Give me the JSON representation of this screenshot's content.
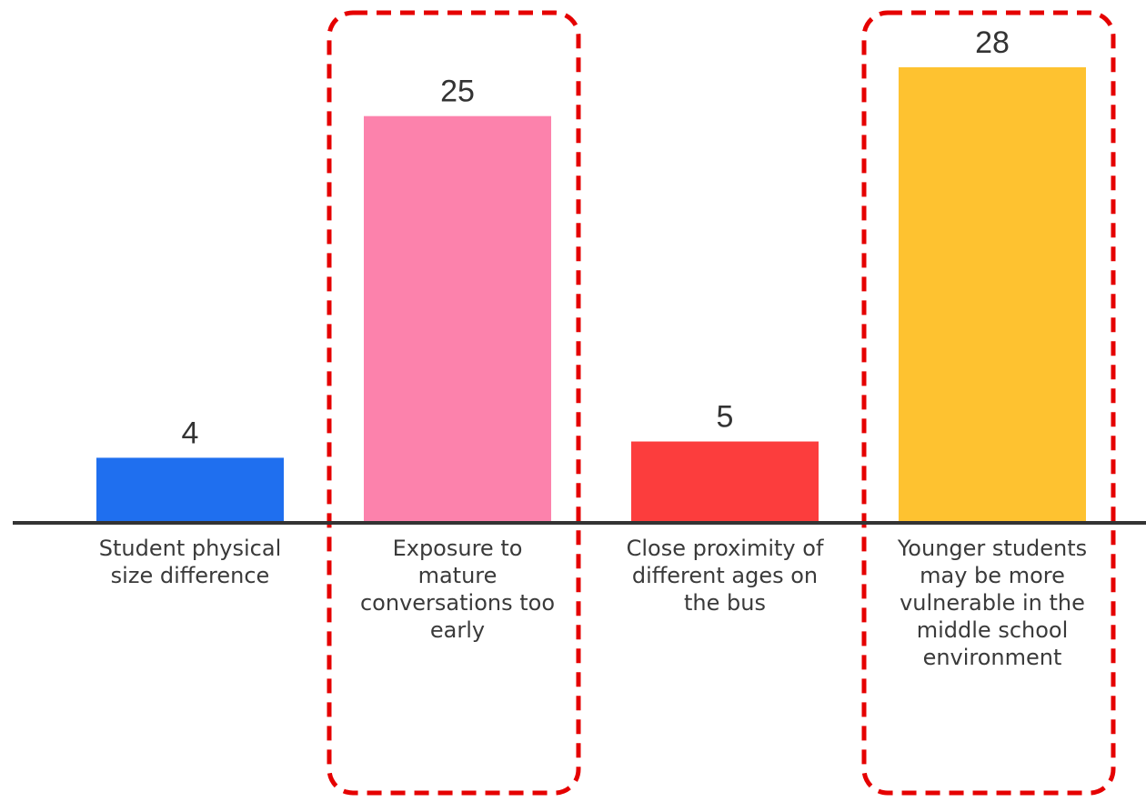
{
  "chart_data": {
    "type": "bar",
    "categories": [
      "Student physical size difference",
      "Exposure to mature conversations too early",
      "Close proximity of different ages on the bus",
      "Younger students may be more vulnerable in the middle school environment"
    ],
    "values": [
      4,
      25,
      5,
      28
    ],
    "data_labels": [
      "4",
      "25",
      "5",
      "28"
    ],
    "colors": [
      "#1f6fef",
      "#fc82ac",
      "#fc3d3d",
      "#fec230"
    ],
    "highlighted_categories": [
      1,
      3
    ],
    "highlight_color": "#e50000",
    "axis_color": "#333333",
    "ylim": [
      0,
      28
    ],
    "grid": false,
    "title": "",
    "xlabel": "",
    "ylabel": ""
  }
}
